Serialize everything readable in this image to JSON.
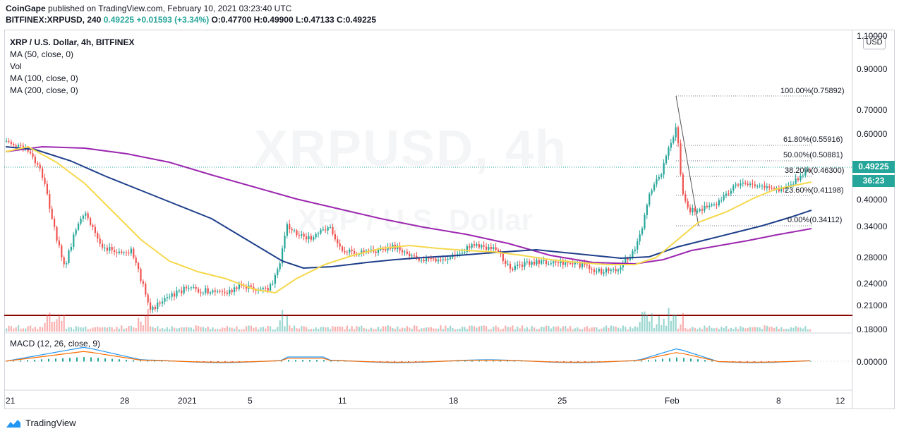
{
  "header": {
    "publisher": "CoinGape",
    "published_text": "published on TradingView.com, February 10, 2021 03:23:40 UTC",
    "symbol": "BITFINEX:XRPUSD, 240",
    "last": "0.49225",
    "change": "+0.01593 (+3.34%)",
    "ohlc": {
      "o": "O:0.47700",
      "h": "H:0.49900",
      "l": "L:0.47133",
      "c": "C:0.49225"
    }
  },
  "legend": {
    "title": "XRP / U.S. Dollar, 4h, BITFINEX",
    "items": [
      "MA (50, close, 0)",
      "Vol",
      "MA (100, close, 0)",
      "MA (200, close, 0)"
    ]
  },
  "watermark": {
    "symbol": "XRPUSD, 4h",
    "name": "XRP / U.S. Dollar"
  },
  "price_axis": {
    "currency": "USD",
    "ticks": [
      "1.10000",
      "0.90000",
      "0.70000",
      "0.60000",
      "0.40000",
      "0.34000",
      "0.28000",
      "0.24000",
      "0.21000",
      "0.18000"
    ],
    "current_price": "0.49225",
    "countdown": "36:23"
  },
  "fibonacci": [
    {
      "label": "100.00%(0.75892)"
    },
    {
      "label": "61.80%(0.55916)"
    },
    {
      "label": "50.00%(0.50881)"
    },
    {
      "label": "38.20%(0.46300)"
    },
    {
      "label": "23.60%(0.41198)"
    },
    {
      "label": "0.00%(0.34112)"
    }
  ],
  "macd": {
    "title": "MACD (12, 26, close, 9)",
    "zero_label": "0.00000"
  },
  "time_axis": [
    "21",
    "28",
    "2021",
    "5",
    "11",
    "18",
    "25",
    "Feb",
    "8",
    "12"
  ],
  "footer": {
    "brand": "TradingView"
  },
  "colors": {
    "up": "#26a69a",
    "down": "#ef5350",
    "ma50": "#f5d84c",
    "ma100": "#1e3f8a",
    "ma200": "#9c27b0",
    "support": "#8b0000"
  }
}
